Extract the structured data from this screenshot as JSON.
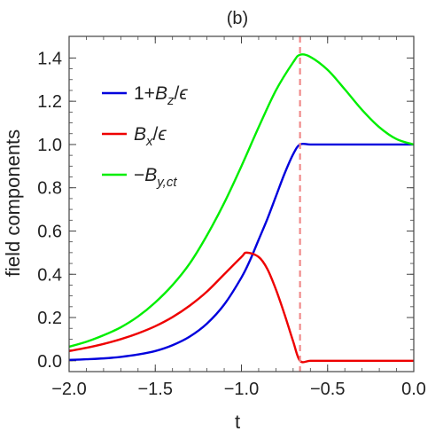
{
  "chart_data": {
    "type": "line",
    "title": "(b)",
    "xlabel": "t",
    "ylabel": "field components",
    "xlim": [
      -2.0,
      0.0
    ],
    "ylim": [
      -0.05,
      1.5
    ],
    "xticks": [
      -2.0,
      -1.5,
      -1.0,
      -0.5,
      0.0
    ],
    "xtick_labels": [
      "−2.0",
      "−1.5",
      "−1.0",
      "−0.5",
      "0.0"
    ],
    "yticks": [
      0.0,
      0.2,
      0.4,
      0.6,
      0.8,
      1.0,
      1.2,
      1.4
    ],
    "ytick_labels": [
      "0.0",
      "0.2",
      "0.4",
      "0.6",
      "0.8",
      "1.0",
      "1.2",
      "1.4"
    ],
    "grid": false,
    "legend_position": "upper-left",
    "annotations": [
      {
        "type": "vertical-dashed-line",
        "x": -0.66,
        "color": "#f08a8a"
      }
    ],
    "series": [
      {
        "name": "1+Bz/ε",
        "legend": {
          "pre": "1+",
          "var": "B",
          "sub": "z",
          "post": "/ϵ"
        },
        "color": "#0000dd",
        "x": [
          -2.0,
          -1.9,
          -1.8,
          -1.7,
          -1.6,
          -1.5,
          -1.4,
          -1.3,
          -1.2,
          -1.1,
          -1.0,
          -0.95,
          -0.9,
          -0.85,
          -0.8,
          -0.75,
          -0.7,
          -0.66,
          -0.6,
          -0.5,
          -0.4,
          -0.3,
          -0.2,
          -0.1,
          0.0
        ],
        "y": [
          0.004,
          0.007,
          0.011,
          0.018,
          0.029,
          0.045,
          0.072,
          0.112,
          0.172,
          0.26,
          0.385,
          0.465,
          0.56,
          0.655,
          0.76,
          0.865,
          0.955,
          1.0,
          1.0,
          1.0,
          1.0,
          1.0,
          1.0,
          1.0,
          1.0
        ]
      },
      {
        "name": "Bx/ε",
        "legend": {
          "pre": "",
          "var": "B",
          "sub": "x",
          "post": "/ϵ"
        },
        "color": "#ee0000",
        "x": [
          -2.0,
          -1.9,
          -1.8,
          -1.7,
          -1.6,
          -1.5,
          -1.4,
          -1.3,
          -1.2,
          -1.1,
          -1.0,
          -0.97,
          -0.9,
          -0.85,
          -0.8,
          -0.75,
          -0.7,
          -0.66,
          -0.6,
          -0.5,
          -0.4,
          -0.3,
          -0.2,
          -0.1,
          0.0
        ],
        "y": [
          0.045,
          0.06,
          0.078,
          0.1,
          0.127,
          0.16,
          0.202,
          0.255,
          0.32,
          0.4,
          0.48,
          0.5,
          0.48,
          0.425,
          0.33,
          0.215,
          0.09,
          0.0,
          0.0,
          0.0,
          0.0,
          0.0,
          0.0,
          0.0,
          0.0
        ]
      },
      {
        "name": "−By,ct",
        "legend": {
          "pre": "−",
          "var": "B",
          "sub": "y,ct",
          "post": ""
        },
        "color": "#00ee00",
        "x": [
          -2.0,
          -1.9,
          -1.8,
          -1.7,
          -1.6,
          -1.5,
          -1.4,
          -1.3,
          -1.2,
          -1.1,
          -1.0,
          -0.9,
          -0.8,
          -0.7,
          -0.66,
          -0.6,
          -0.5,
          -0.4,
          -0.3,
          -0.2,
          -0.1,
          0.0
        ],
        "y": [
          0.065,
          0.088,
          0.118,
          0.155,
          0.205,
          0.27,
          0.35,
          0.45,
          0.58,
          0.73,
          0.9,
          1.08,
          1.25,
          1.38,
          1.415,
          1.405,
          1.345,
          1.255,
          1.16,
          1.08,
          1.025,
          1.0
        ]
      }
    ]
  }
}
